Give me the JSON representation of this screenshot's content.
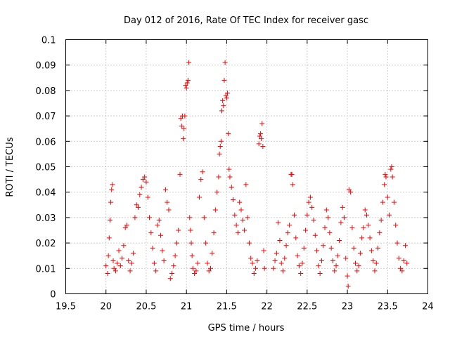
{
  "chart_data": {
    "type": "scatter",
    "title": "Day 012 of 2016, Rate Of TEC Index for receiver gasc",
    "xlabel": "GPS time / hours",
    "ylabel": "ROTI / TECUs",
    "xlim": [
      19.5,
      24
    ],
    "ylim": [
      0,
      0.1
    ],
    "grid": true,
    "marker": "plus",
    "color": "#ff0000",
    "x_ticks": [
      "19.5",
      "20",
      "20.5",
      "21",
      "21.5",
      "22",
      "22.5",
      "23",
      "23.5",
      "24"
    ],
    "y_ticks": [
      "0",
      "0.01",
      "0.02",
      "0.03",
      "0.04",
      "0.05",
      "0.06",
      "0.07",
      "0.08",
      "0.09",
      "0.1"
    ],
    "series": [
      {
        "name": "ROTI",
        "points": [
          [
            20.0,
            0.011
          ],
          [
            20.02,
            0.008
          ],
          [
            20.03,
            0.015
          ],
          [
            20.04,
            0.022
          ],
          [
            20.05,
            0.029
          ],
          [
            20.06,
            0.036
          ],
          [
            20.07,
            0.041
          ],
          [
            20.08,
            0.043
          ],
          [
            20.09,
            0.013
          ],
          [
            20.1,
            0.01
          ],
          [
            20.12,
            0.009
          ],
          [
            20.14,
            0.012
          ],
          [
            20.16,
            0.017
          ],
          [
            20.18,
            0.011
          ],
          [
            20.2,
            0.014
          ],
          [
            20.22,
            0.019
          ],
          [
            20.24,
            0.026
          ],
          [
            20.26,
            0.027
          ],
          [
            20.28,
            0.013
          ],
          [
            20.3,
            0.009
          ],
          [
            20.32,
            0.012
          ],
          [
            20.34,
            0.016
          ],
          [
            20.36,
            0.03
          ],
          [
            20.38,
            0.035
          ],
          [
            20.4,
            0.034
          ],
          [
            20.42,
            0.039
          ],
          [
            20.44,
            0.042
          ],
          [
            20.46,
            0.045
          ],
          [
            20.48,
            0.046
          ],
          [
            20.5,
            0.044
          ],
          [
            20.52,
            0.038
          ],
          [
            20.54,
            0.03
          ],
          [
            20.56,
            0.024
          ],
          [
            20.58,
            0.018
          ],
          [
            20.6,
            0.012
          ],
          [
            20.62,
            0.009
          ],
          [
            20.64,
            0.027
          ],
          [
            20.66,
            0.029
          ],
          [
            20.68,
            0.023
          ],
          [
            20.7,
            0.017
          ],
          [
            20.72,
            0.013
          ],
          [
            20.74,
            0.041
          ],
          [
            20.76,
            0.036
          ],
          [
            20.78,
            0.033
          ],
          [
            20.8,
            0.006
          ],
          [
            20.82,
            0.008
          ],
          [
            20.84,
            0.011
          ],
          [
            20.86,
            0.015
          ],
          [
            20.88,
            0.02
          ],
          [
            20.9,
            0.025
          ],
          [
            20.92,
            0.047
          ],
          [
            20.93,
            0.069
          ],
          [
            20.94,
            0.066
          ],
          [
            20.95,
            0.07
          ],
          [
            20.96,
            0.061
          ],
          [
            20.97,
            0.065
          ],
          [
            20.98,
            0.07
          ],
          [
            20.99,
            0.082
          ],
          [
            21.0,
            0.081
          ],
          [
            21.01,
            0.083
          ],
          [
            21.02,
            0.084
          ],
          [
            21.03,
            0.091
          ],
          [
            21.04,
            0.03
          ],
          [
            21.05,
            0.025
          ],
          [
            21.06,
            0.02
          ],
          [
            21.07,
            0.015
          ],
          [
            21.08,
            0.01
          ],
          [
            21.1,
            0.008
          ],
          [
            21.12,
            0.009
          ],
          [
            21.14,
            0.012
          ],
          [
            21.16,
            0.038
          ],
          [
            21.18,
            0.045
          ],
          [
            21.2,
            0.048
          ],
          [
            21.22,
            0.03
          ],
          [
            21.24,
            0.02
          ],
          [
            21.26,
            0.012
          ],
          [
            21.28,
            0.009
          ],
          [
            21.3,
            0.01
          ],
          [
            21.32,
            0.016
          ],
          [
            21.34,
            0.024
          ],
          [
            21.36,
            0.033
          ],
          [
            21.38,
            0.04
          ],
          [
            21.4,
            0.046
          ],
          [
            21.41,
            0.055
          ],
          [
            21.42,
            0.058
          ],
          [
            21.43,
            0.06
          ],
          [
            21.44,
            0.072
          ],
          [
            21.45,
            0.076
          ],
          [
            21.46,
            0.074
          ],
          [
            21.47,
            0.084
          ],
          [
            21.48,
            0.091
          ],
          [
            21.49,
            0.078
          ],
          [
            21.5,
            0.077
          ],
          [
            21.51,
            0.079
          ],
          [
            21.52,
            0.063
          ],
          [
            21.53,
            0.049
          ],
          [
            21.54,
            0.046
          ],
          [
            21.56,
            0.042
          ],
          [
            21.58,
            0.037
          ],
          [
            21.6,
            0.031
          ],
          [
            21.62,
            0.027
          ],
          [
            21.64,
            0.024
          ],
          [
            21.66,
            0.036
          ],
          [
            21.68,
            0.033
          ],
          [
            21.7,
            0.029
          ],
          [
            21.72,
            0.025
          ],
          [
            21.74,
            0.043
          ],
          [
            21.76,
            0.03
          ],
          [
            21.78,
            0.02
          ],
          [
            21.8,
            0.014
          ],
          [
            21.82,
            0.012
          ],
          [
            21.84,
            0.008
          ],
          [
            21.86,
            0.01
          ],
          [
            21.88,
            0.013
          ],
          [
            21.9,
            0.059
          ],
          [
            21.91,
            0.062
          ],
          [
            21.92,
            0.063
          ],
          [
            21.93,
            0.061
          ],
          [
            21.94,
            0.067
          ],
          [
            21.95,
            0.058
          ],
          [
            21.96,
            0.017
          ],
          [
            21.97,
            0.01
          ],
          [
            22.08,
            0.01
          ],
          [
            22.1,
            0.013
          ],
          [
            22.12,
            0.016
          ],
          [
            22.14,
            0.028
          ],
          [
            22.16,
            0.021
          ],
          [
            22.18,
            0.012
          ],
          [
            22.2,
            0.009
          ],
          [
            22.22,
            0.014
          ],
          [
            22.24,
            0.019
          ],
          [
            22.26,
            0.024
          ],
          [
            22.28,
            0.027
          ],
          [
            22.3,
            0.047
          ],
          [
            22.31,
            0.047
          ],
          [
            22.32,
            0.043
          ],
          [
            22.34,
            0.031
          ],
          [
            22.36,
            0.022
          ],
          [
            22.38,
            0.015
          ],
          [
            22.4,
            0.011
          ],
          [
            22.42,
            0.008
          ],
          [
            22.44,
            0.012
          ],
          [
            22.46,
            0.018
          ],
          [
            22.48,
            0.025
          ],
          [
            22.5,
            0.031
          ],
          [
            22.52,
            0.036
          ],
          [
            22.54,
            0.038
          ],
          [
            22.56,
            0.034
          ],
          [
            22.58,
            0.029
          ],
          [
            22.6,
            0.023
          ],
          [
            22.62,
            0.017
          ],
          [
            22.64,
            0.011
          ],
          [
            22.66,
            0.008
          ],
          [
            22.68,
            0.013
          ],
          [
            22.7,
            0.019
          ],
          [
            22.72,
            0.026
          ],
          [
            22.74,
            0.033
          ],
          [
            22.76,
            0.03
          ],
          [
            22.78,
            0.024
          ],
          [
            22.8,
            0.018
          ],
          [
            22.82,
            0.013
          ],
          [
            22.84,
            0.009
          ],
          [
            22.86,
            0.011
          ],
          [
            22.88,
            0.015
          ],
          [
            22.9,
            0.021
          ],
          [
            22.92,
            0.028
          ],
          [
            22.94,
            0.034
          ],
          [
            22.96,
            0.03
          ],
          [
            22.98,
            0.014
          ],
          [
            23.0,
            0.007
          ],
          [
            23.01,
            0.003
          ],
          [
            23.02,
            0.041
          ],
          [
            23.04,
            0.04
          ],
          [
            23.06,
            0.026
          ],
          [
            23.08,
            0.018
          ],
          [
            23.1,
            0.012
          ],
          [
            23.12,
            0.009
          ],
          [
            23.14,
            0.011
          ],
          [
            23.16,
            0.016
          ],
          [
            23.18,
            0.022
          ],
          [
            23.2,
            0.026
          ],
          [
            23.22,
            0.033
          ],
          [
            23.24,
            0.031
          ],
          [
            23.26,
            0.027
          ],
          [
            23.28,
            0.022
          ],
          [
            23.3,
            0.017
          ],
          [
            23.32,
            0.013
          ],
          [
            23.34,
            0.009
          ],
          [
            23.36,
            0.012
          ],
          [
            23.38,
            0.018
          ],
          [
            23.4,
            0.024
          ],
          [
            23.42,
            0.029
          ],
          [
            23.44,
            0.036
          ],
          [
            23.46,
            0.043
          ],
          [
            23.47,
            0.047
          ],
          [
            23.48,
            0.046
          ],
          [
            23.5,
            0.038
          ],
          [
            23.52,
            0.031
          ],
          [
            23.54,
            0.049
          ],
          [
            23.55,
            0.05
          ],
          [
            23.56,
            0.046
          ],
          [
            23.58,
            0.036
          ],
          [
            23.6,
            0.027
          ],
          [
            23.62,
            0.02
          ],
          [
            23.64,
            0.014
          ],
          [
            23.66,
            0.01
          ],
          [
            23.68,
            0.009
          ],
          [
            23.7,
            0.013
          ],
          [
            23.72,
            0.019
          ],
          [
            23.74,
            0.012
          ]
        ]
      }
    ]
  }
}
